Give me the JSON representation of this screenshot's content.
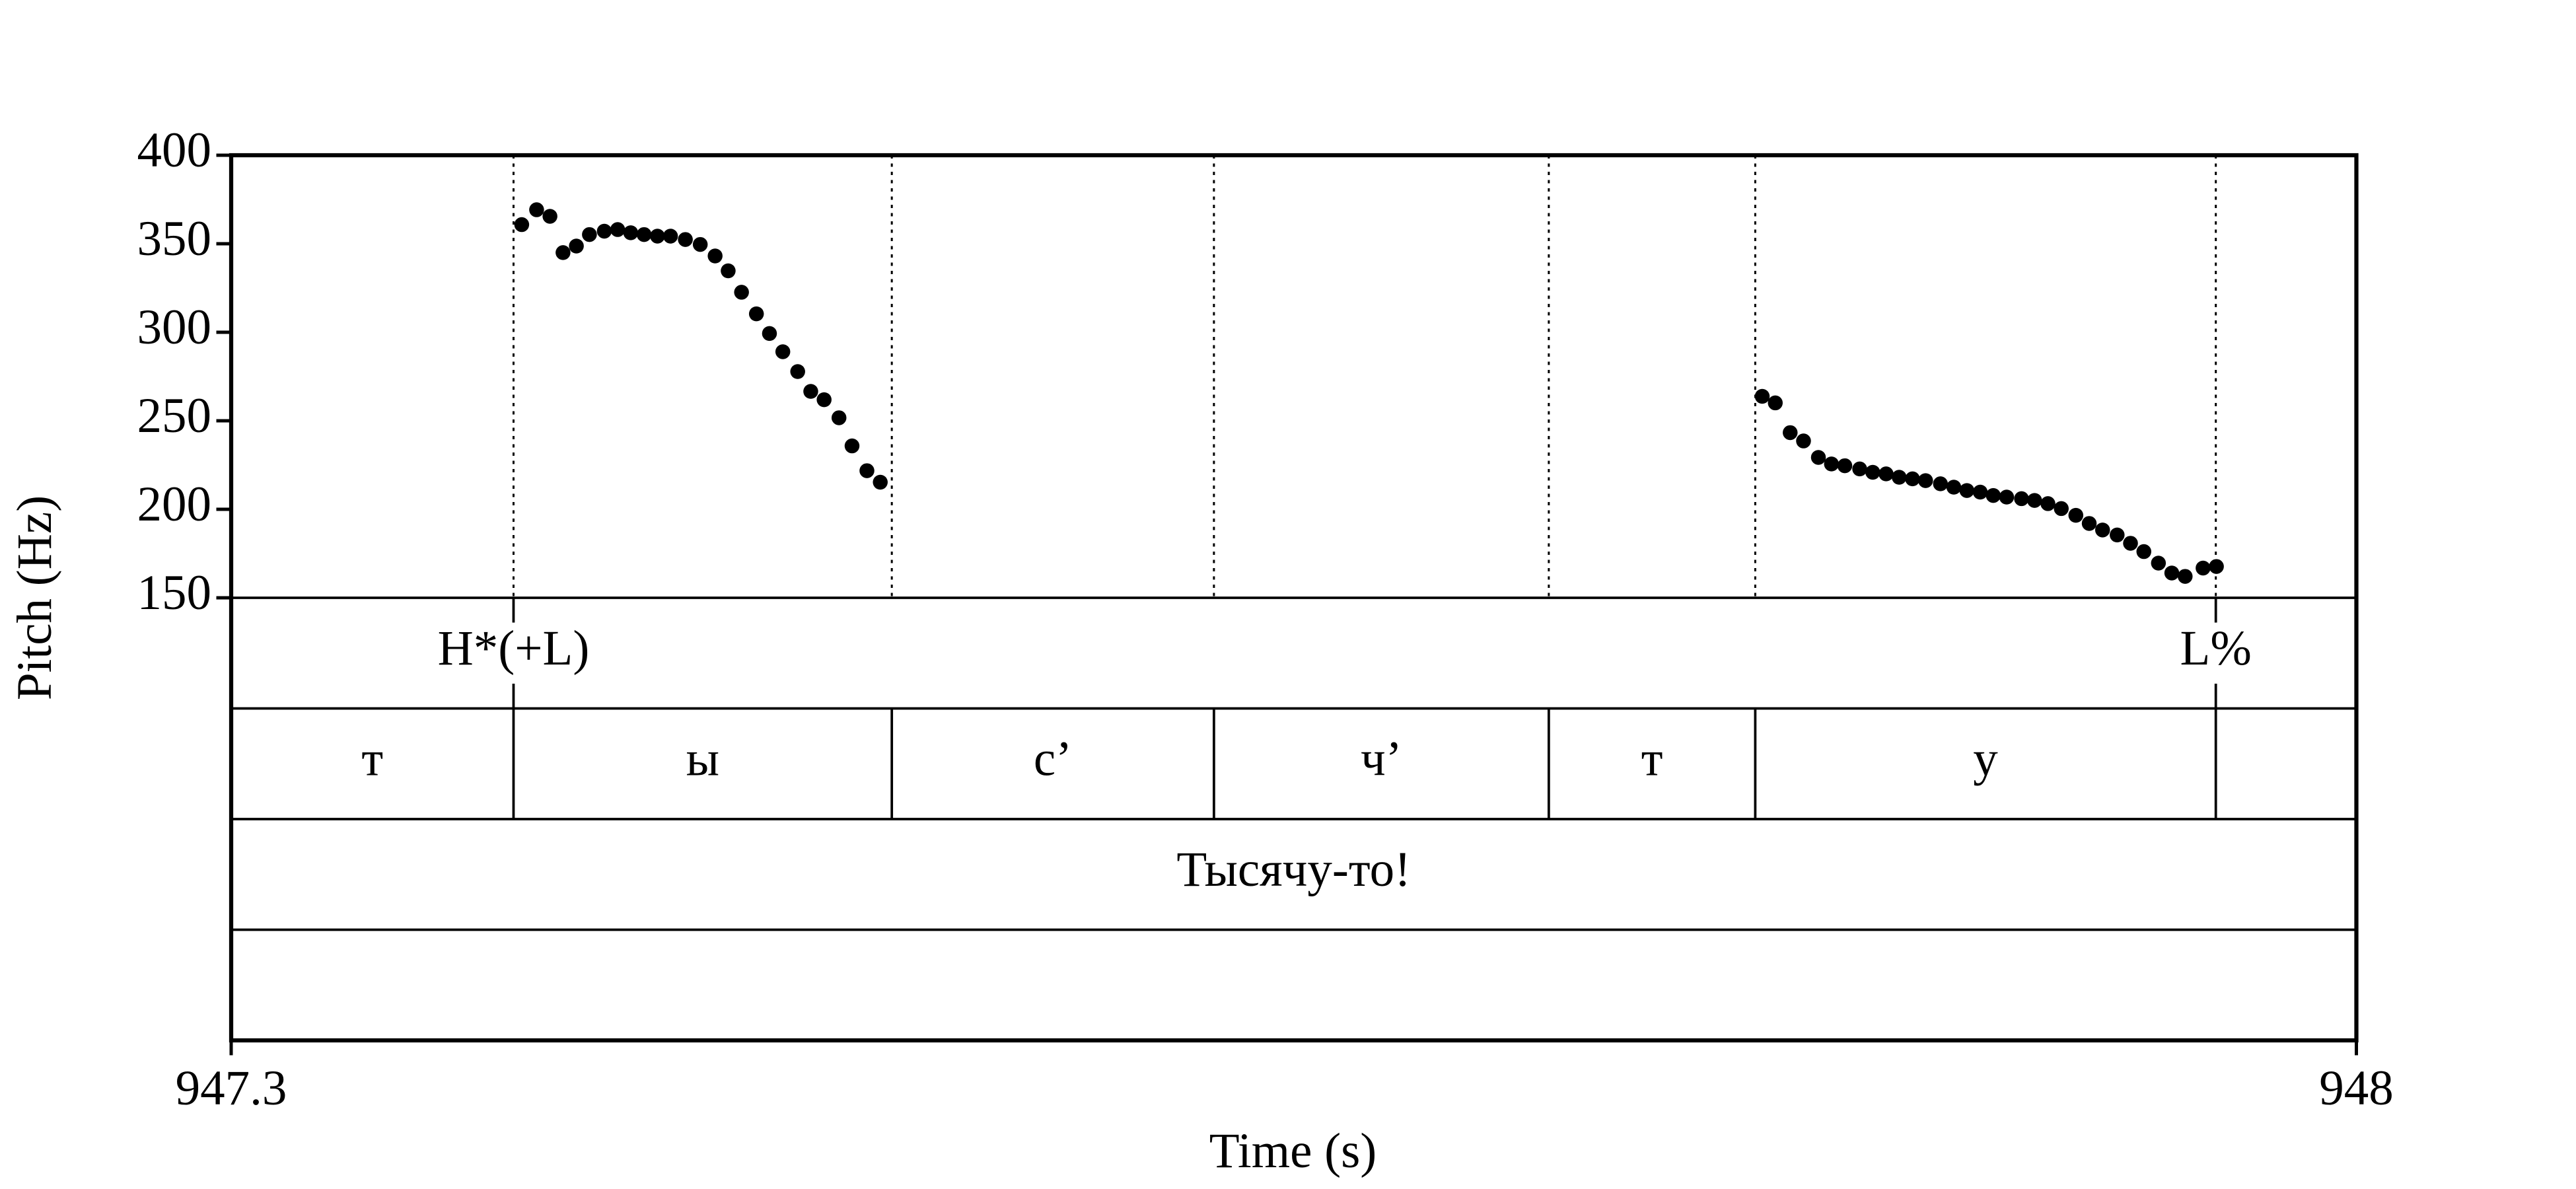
{
  "chart_data": {
    "type": "scatter",
    "x_label": "Time (s)",
    "y_label": "Pitch (Hz)",
    "xlim": [
      947.3,
      948
    ],
    "xticks": [
      947.3,
      948
    ],
    "ylim": [
      150,
      400
    ],
    "yticks": [
      150,
      200,
      250,
      300,
      350,
      400
    ],
    "color": "#000000",
    "x": [
      947.3957,
      947.4006,
      947.405,
      947.4093,
      947.4137,
      947.418,
      947.4229,
      947.4273,
      947.4316,
      947.436,
      947.4404,
      947.4447,
      947.4496,
      947.4545,
      947.4594,
      947.4637,
      947.4681,
      947.473,
      947.4773,
      947.4817,
      947.4866,
      947.4909,
      947.4953,
      947.5002,
      947.5045,
      947.5094,
      947.5138,
      947.8043,
      947.8086,
      947.8135,
      947.8179,
      947.8228,
      947.8271,
      947.8315,
      947.8364,
      947.8407,
      947.8451,
      947.8494,
      947.8538,
      947.8581,
      947.863,
      947.8674,
      947.8717,
      947.8761,
      947.8804,
      947.8848,
      947.8897,
      947.894,
      947.8984,
      947.9028,
      947.9076,
      947.912,
      947.9164,
      947.9212,
      947.9256,
      947.93,
      947.9348,
      947.9392,
      947.9436,
      947.9495,
      947.9539
    ],
    "values": [
      360.8,
      369.2,
      365.5,
      345.0,
      348.7,
      355.2,
      357.1,
      358.0,
      356.2,
      355.2,
      354.3,
      354.3,
      352.4,
      349.6,
      343.1,
      334.7,
      322.6,
      310.4,
      299.3,
      289.0,
      277.8,
      266.6,
      261.9,
      251.7,
      235.8,
      221.8,
      215.3,
      263.8,
      260.1,
      243.3,
      238.6,
      229.3,
      225.6,
      224.6,
      222.8,
      220.9,
      220.0,
      218.1,
      217.2,
      216.2,
      214.4,
      212.5,
      210.6,
      209.7,
      207.8,
      206.9,
      206.0,
      205.0,
      203.2,
      200.4,
      196.6,
      192.0,
      188.3,
      185.5,
      180.8,
      176.1,
      169.6,
      164.0,
      162.1,
      166.8,
      167.7
    ],
    "tiers": [
      {
        "kind": "point",
        "points": [
          947.393,
          947.9537
        ],
        "labels": [
          "H*(+L)",
          "L%"
        ]
      },
      {
        "kind": "interval",
        "boundaries": [
          947.393,
          947.5176,
          947.6237,
          947.734,
          947.802,
          947.9537
        ],
        "labels": [
          "т",
          "ы",
          "с’",
          "ч’",
          "т",
          "у",
          null
        ]
      },
      {
        "kind": "interval",
        "boundaries": [],
        "labels": [
          "Тысячу-то!"
        ]
      },
      {
        "kind": "interval",
        "boundaries": [],
        "labels": [
          null
        ]
      }
    ]
  }
}
